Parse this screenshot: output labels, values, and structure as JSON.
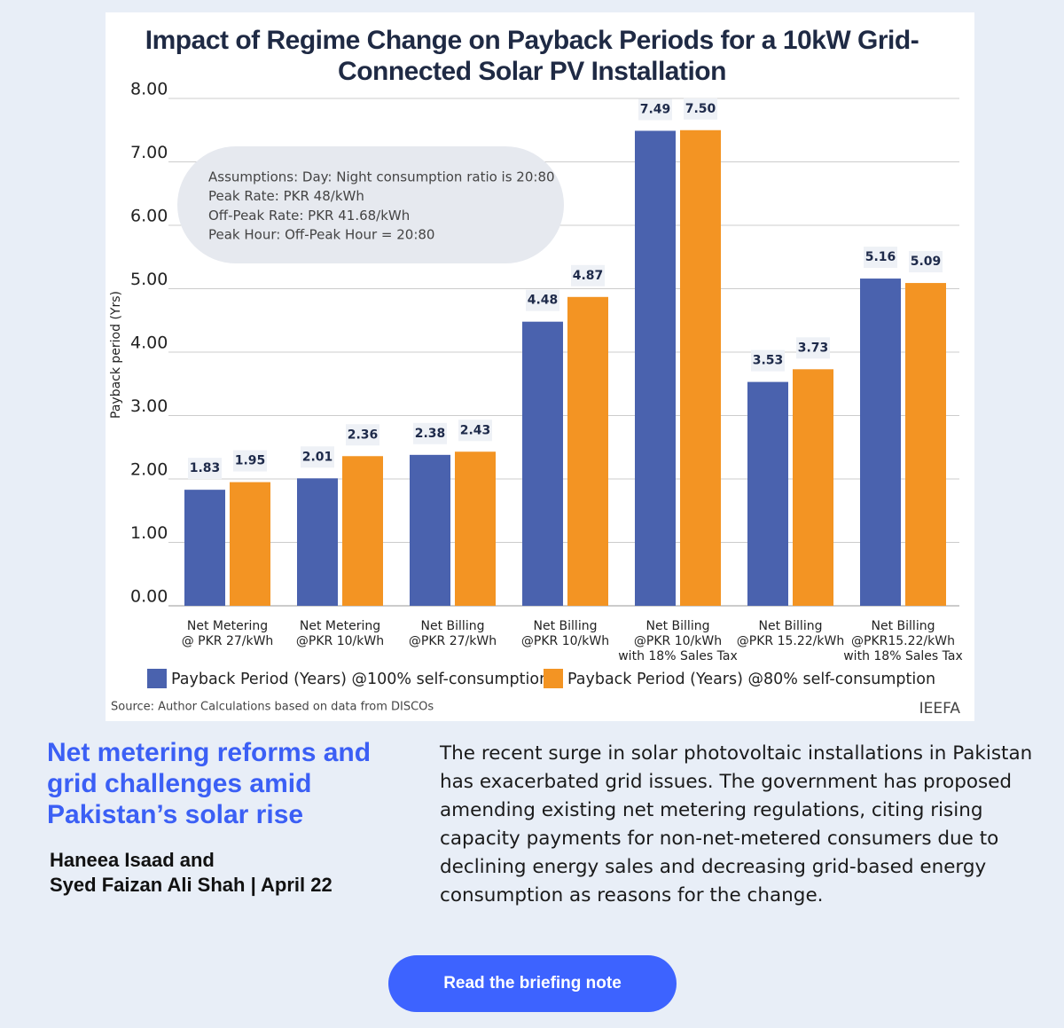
{
  "chart_data": {
    "type": "bar",
    "title": "Impact of Regime Change on Payback Periods for a 10kW Grid-Connected Solar PV Installation",
    "y_label": "Payback period (Yrs)",
    "categories": [
      "Net Metering\n@ PKR 27/kWh",
      "Net Metering\n@PKR 10/kWh",
      "Net Billing\n@PKR 27/kWh",
      "Net Billing\n@PKR 10/kWh",
      "Net Billing\n@PKR 10/kWh\nwith 18% Sales Tax",
      "Net Billing\n@PKR 15.22/kWh",
      "Net Billing\n@PKR15.22/kWh\nwith 18% Sales Tax"
    ],
    "series": [
      {
        "name": "Payback Period (Years) @100% self-consumption",
        "color": "#4a62ae",
        "values": [
          1.83,
          2.01,
          2.38,
          4.48,
          7.49,
          3.53,
          5.16
        ],
        "value_labels": [
          "1.83",
          "2.01",
          "2.38",
          "4.48",
          "7.49",
          "3.53",
          "5.16"
        ]
      },
      {
        "name": "Payback Period (Years) @80% self-consumption",
        "color": "#f39423",
        "values": [
          1.95,
          2.36,
          2.43,
          4.87,
          7.5,
          3.73,
          5.09
        ],
        "value_labels": [
          "1.95",
          "2.36",
          "2.43",
          "4.87",
          "7.50",
          "3.73",
          "5.09"
        ]
      }
    ],
    "ylim": [
      0,
      8
    ],
    "yticks": [
      {
        "value": 0,
        "label": "0.00"
      },
      {
        "value": 1,
        "label": "1.00"
      },
      {
        "value": 2,
        "label": "2.00"
      },
      {
        "value": 3,
        "label": "3.00"
      },
      {
        "value": 4,
        "label": "4.00"
      },
      {
        "value": 5,
        "label": "5.00"
      },
      {
        "value": 6,
        "label": "6.00"
      },
      {
        "value": 7,
        "label": "7.00"
      },
      {
        "value": 8,
        "label": "8.00"
      }
    ],
    "grid": true,
    "legend": "bottom",
    "annotation": [
      "Assumptions: Day: Night consumption ratio is 20:80",
      "Peak Rate: PKR 48/kWh",
      "Off-Peak Rate: PKR 41.68/kWh",
      "Peak Hour: Off-Peak Hour = 20:80"
    ],
    "source": "Source: Author Calculations based on data from DISCOs",
    "brand": "IEEFA"
  },
  "article": {
    "headline": "Net metering reforms and grid challenges amid Pakistan’s solar rise",
    "byline": "Haneea Isaad and\nSyed Faizan Ali Shah | April 22",
    "body": "The recent surge in solar photovoltaic installations in Pakistan has exacerbated grid issues. The government has proposed amending existing net metering regulations, citing rising capacity payments for non-net-metered consumers due to declining energy sales and decreasing grid-based energy consumption as reasons for the change.",
    "button": "Read the briefing note"
  }
}
